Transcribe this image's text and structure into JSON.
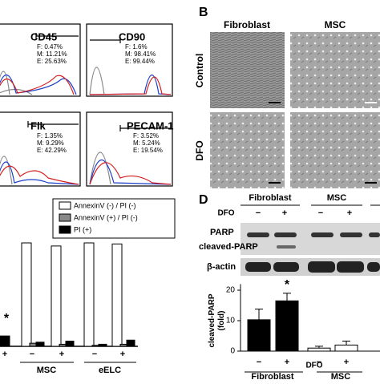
{
  "flow_panels": [
    {
      "marker": "CD45",
      "stats": [
        "F: 0.47%",
        "M: 11.21%",
        "E: 25.63%"
      ]
    },
    {
      "marker": "CD90",
      "stats": [
        "F: 1.6%",
        "M: 98.41%",
        "E: 99.44%"
      ]
    },
    {
      "marker": "Flk",
      "stats": [
        "F: 1.35%",
        "M: 9.29%",
        "E: 42.29%"
      ]
    },
    {
      "marker": "PECAM-1",
      "stats": [
        "F: 3.52%",
        "M: 5.24%",
        "E: 19.54%"
      ]
    }
  ],
  "panel_b": {
    "label": "B",
    "columns": [
      "Fibroblast",
      "MSC"
    ],
    "rows": [
      "Control",
      "DFO"
    ]
  },
  "apoptosis_chart": {
    "type": "bar",
    "categories": [
      "+",
      "−",
      "+",
      "−",
      "+"
    ],
    "groups": [
      "MSC",
      "eELC"
    ],
    "annotation": "*",
    "ylim": [
      0,
      100
    ],
    "series": [
      {
        "name": "AnnexinV (-) / PI (-)",
        "color": "#ffffff",
        "values": [
          null,
          100,
          97,
          100,
          99
        ]
      },
      {
        "name": "AnnexinV (+) / PI (-)",
        "color": "#888888",
        "values": [
          null,
          3,
          2,
          1,
          2
        ]
      },
      {
        "name": "PI (+)",
        "color": "#000000",
        "values": [
          10,
          4,
          5,
          2,
          6
        ]
      }
    ]
  },
  "panel_d": {
    "label": "D",
    "cell_types": [
      "Fibroblast",
      "MSC"
    ],
    "treatment": "DFO",
    "lanes": [
      "−",
      "+",
      "−",
      "+"
    ],
    "blot_rows": [
      "PARP",
      "cleaved-PARP",
      "β-actin"
    ],
    "chart": {
      "type": "bar",
      "ylabel": "cleaved-PARP\n(fold)",
      "ylim": [
        0,
        22
      ],
      "yticks": [
        0,
        10,
        20
      ],
      "categories": [
        "−",
        "+",
        "−",
        "+"
      ],
      "groups": [
        "Fibroblast",
        "MSC"
      ],
      "xlabel": "DFO",
      "values": [
        10.3,
        16.5,
        1.0,
        2.0
      ],
      "errors": [
        3.5,
        2.5,
        0.6,
        1.3
      ],
      "colors": [
        "#000000",
        "#000000",
        "#ffffff",
        "#ffffff"
      ],
      "annotation": "*"
    }
  }
}
